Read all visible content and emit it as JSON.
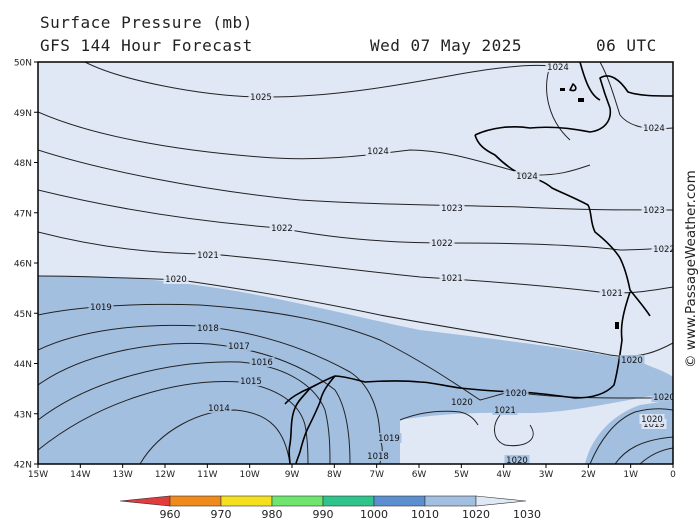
{
  "header": {
    "title": "Surface Pressure (mb)",
    "subtitle": "GFS 144 Hour Forecast",
    "date": "Wed 07 May 2025",
    "time": "06 UTC"
  },
  "credit": "© www.PassageWeather.com",
  "map": {
    "lat_ticks": [
      "50N",
      "49N",
      "48N",
      "47N",
      "46N",
      "45N",
      "44N",
      "43N",
      "42N"
    ],
    "lon_ticks": [
      "15W",
      "14W",
      "13W",
      "12W",
      "11W",
      "10W",
      "9W",
      "8W",
      "7W",
      "6W",
      "5W",
      "4W",
      "3W",
      "2W",
      "1W",
      "0"
    ],
    "isobars": [
      {
        "label": "1025"
      },
      {
        "label": "1024"
      },
      {
        "label": "1024"
      },
      {
        "label": "1024"
      },
      {
        "label": "1024"
      },
      {
        "label": "1023"
      },
      {
        "label": "1023"
      },
      {
        "label": "1022"
      },
      {
        "label": "1022"
      },
      {
        "label": "1022"
      },
      {
        "label": "1021"
      },
      {
        "label": "1021"
      },
      {
        "label": "1021"
      },
      {
        "label": "1020"
      },
      {
        "label": "1020"
      },
      {
        "label": "1020"
      },
      {
        "label": "1020"
      },
      {
        "label": "1020"
      },
      {
        "label": "1019"
      },
      {
        "label": "1018"
      },
      {
        "label": "1017"
      },
      {
        "label": "1016"
      },
      {
        "label": "1015"
      },
      {
        "label": "1014"
      },
      {
        "label": "1021"
      },
      {
        "label": "1019"
      },
      {
        "label": "1018"
      },
      {
        "label": "1020"
      },
      {
        "label": "1019"
      },
      {
        "label": "1020"
      }
    ]
  },
  "legend": {
    "labels": [
      "960",
      "970",
      "980",
      "990",
      "1000",
      "1010",
      "1020",
      "1030"
    ],
    "colors": [
      "#e23b3b",
      "#f08a1c",
      "#f4e020",
      "#6ee66e",
      "#2ec48c",
      "#5b8fd0",
      "#a3bfe0",
      "#e0e8f6"
    ]
  }
}
